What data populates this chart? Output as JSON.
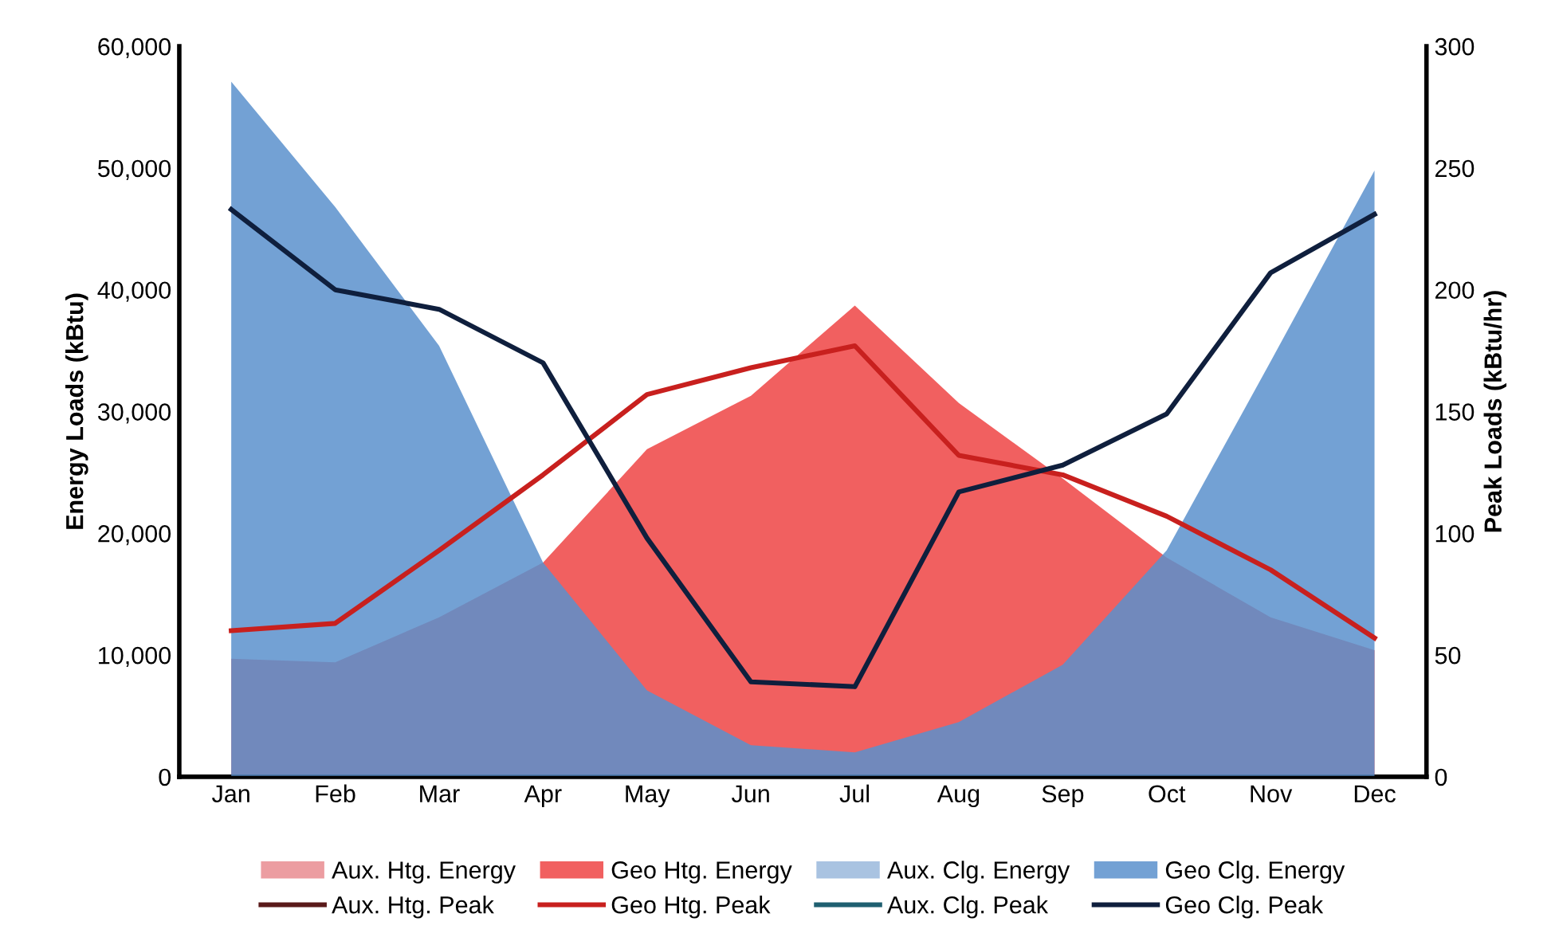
{
  "chart_data": {
    "type": "area",
    "ylabel": "Energy Loads (kBtu)",
    "y2label": "Peak Loads (kBtu/hr)",
    "categories": [
      "Jan",
      "Feb",
      "Mar",
      "Apr",
      "May",
      "Jun",
      "Jul",
      "Aug",
      "Sep",
      "Oct",
      "Nov",
      "Dec"
    ],
    "series": [
      {
        "name": "Aux. Htg. Energy",
        "color": "#e98c90",
        "values": [
          null,
          null,
          null,
          null,
          null,
          null,
          null,
          null,
          null,
          null,
          null,
          null
        ]
      },
      {
        "name": "Geo Htg. Energy",
        "color": "#ee4444",
        "values": [
          9700,
          9400,
          13100,
          17600,
          26900,
          31300,
          38700,
          30700,
          24500,
          18000,
          13100,
          10400
        ]
      },
      {
        "name": "Aux. Clg. Energy",
        "color": "#9ab8dc",
        "values": [
          null,
          null,
          null,
          null,
          null,
          null,
          null,
          null,
          null,
          null,
          null,
          null
        ]
      },
      {
        "name": "Geo Clg. Energy",
        "color": "#5a91cd",
        "values": [
          57100,
          46800,
          35400,
          17600,
          7100,
          2600,
          2000,
          4500,
          9200,
          18600,
          34100,
          49800
        ]
      },
      {
        "name": "Aux. Htg. Peak",
        "type": "line",
        "axis": "y2",
        "color": "#5a1a1a",
        "values": [
          null,
          null,
          null,
          null,
          null,
          null,
          null,
          null,
          null,
          null,
          null,
          null
        ]
      },
      {
        "name": "Geo Htg. Peak",
        "type": "line",
        "axis": "y2",
        "color": "#c8201e",
        "values": [
          60,
          63,
          93,
          124,
          157,
          168,
          177,
          132,
          124,
          107,
          85,
          57
        ]
      },
      {
        "name": "Aux. Clg. Peak",
        "type": "line",
        "axis": "y2",
        "color": "#1f5f70",
        "values": [
          null,
          null,
          null,
          null,
          null,
          null,
          null,
          null,
          null,
          null,
          null,
          null
        ]
      },
      {
        "name": "Geo Clg. Peak",
        "type": "line",
        "axis": "y2",
        "color": "#0f1f3d",
        "values": [
          233,
          200,
          192,
          170,
          98,
          39,
          37,
          117,
          128,
          149,
          207,
          231
        ]
      }
    ],
    "ylim": [
      0,
      60000
    ],
    "yticks": [
      {
        "value": 0,
        "label": "0"
      },
      {
        "value": 10000,
        "label": "10,000"
      },
      {
        "value": 20000,
        "label": "20,000"
      },
      {
        "value": 30000,
        "label": "30,000"
      },
      {
        "value": 40000,
        "label": "40,000"
      },
      {
        "value": 50000,
        "label": "50,000"
      },
      {
        "value": 60000,
        "label": "60,000"
      }
    ],
    "y2lim": [
      0,
      300
    ],
    "y2ticks": [
      0,
      50,
      100,
      150,
      200,
      250,
      300
    ],
    "legend": "bottom",
    "grid": false,
    "marker": "none",
    "line_style": "solid"
  }
}
